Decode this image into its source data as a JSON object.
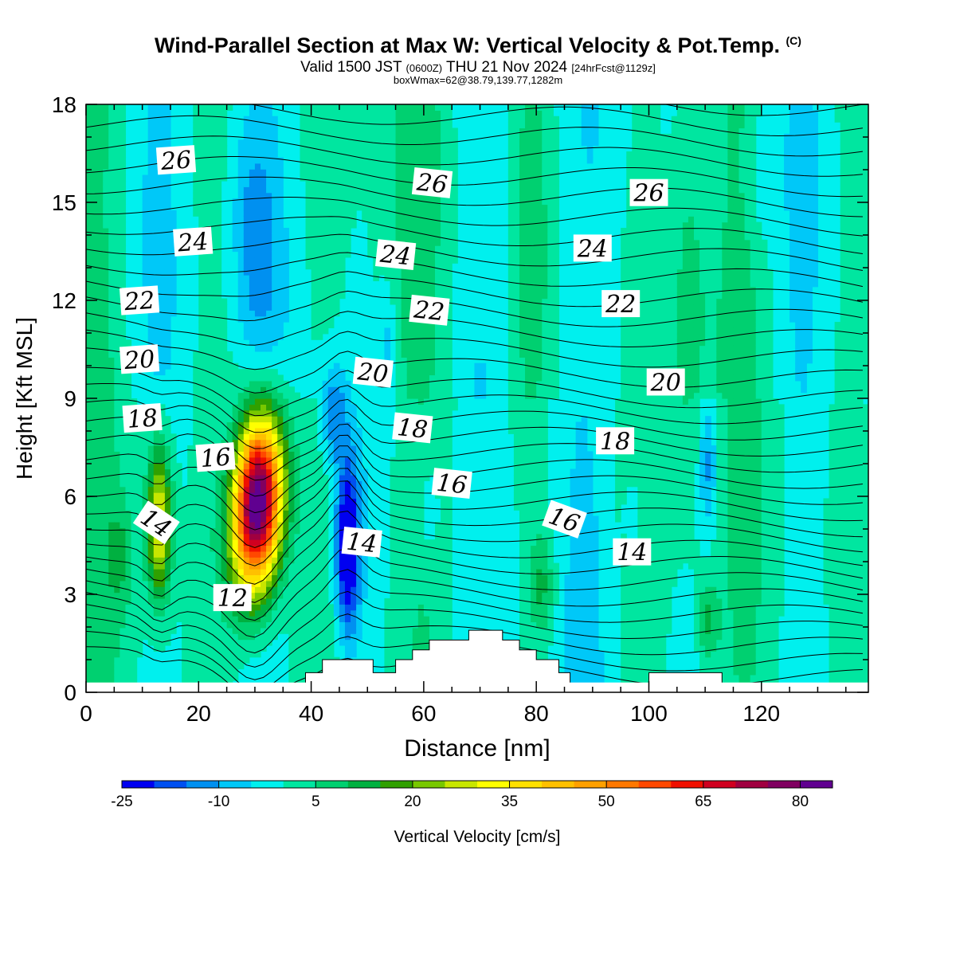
{
  "header": {
    "title_main": "Wind-Parallel Section at Max W: Vertical Velocity & Pot.Temp.",
    "title_copyright": "(C)",
    "valid_prefix": "Valid 1500 JST",
    "valid_utc": "(0600Z)",
    "valid_date": "THU 21 Nov 2024",
    "forecast_info": "[24hrFcst@1129z]",
    "box_info": "boxWmax=62@38.79,139.77,1282m"
  },
  "chart_data": {
    "type": "heatmap",
    "xlabel": "Distance [nm]",
    "ylabel": "Height [Kft MSL]",
    "xlim": [
      0,
      139
    ],
    "ylim": [
      0,
      18
    ],
    "x_ticks": [
      0,
      20,
      40,
      60,
      80,
      100,
      120
    ],
    "y_ticks": [
      0,
      3,
      6,
      9,
      12,
      15,
      18
    ],
    "colorbar": {
      "label": "Vertical Velocity [cm/s]",
      "ticks": [
        -25,
        -10,
        5,
        20,
        35,
        50,
        65,
        80
      ],
      "min": -25,
      "step": 5,
      "colors": [
        "#0000f0",
        "#0050f0",
        "#0090f0",
        "#00c8f8",
        "#00f0ee",
        "#00e6a0",
        "#00d070",
        "#00b040",
        "#30a000",
        "#78c800",
        "#c8e600",
        "#ffff00",
        "#ffe000",
        "#ffc000",
        "#ffa000",
        "#ff7800",
        "#ff4800",
        "#f01000",
        "#d00020",
        "#a00040",
        "#800060",
        "#600090"
      ]
    },
    "updrafts": [
      {
        "x": 30.5,
        "y": 5.8,
        "peak": 85
      },
      {
        "x": 13,
        "y": 5.2,
        "peak": 38
      },
      {
        "x": 81,
        "y": 3.3,
        "peak": 18
      },
      {
        "x": 110.5,
        "y": 2.2,
        "peak": 15
      }
    ],
    "downdrafts": [
      {
        "x": 46.5,
        "y": 4.5,
        "min": -25
      },
      {
        "x": 44,
        "y": 8.5,
        "min": -15
      },
      {
        "x": 110.5,
        "y": 7.0,
        "min": -12
      },
      {
        "x": 30,
        "y": 14.0,
        "min": -10
      }
    ],
    "terrain": [
      [
        0,
        0
      ],
      [
        39,
        0
      ],
      [
        39,
        0.6
      ],
      [
        42,
        0.6
      ],
      [
        42,
        1.0
      ],
      [
        51,
        1.0
      ],
      [
        51,
        0.6
      ],
      [
        55,
        0.6
      ],
      [
        55,
        1.0
      ],
      [
        58,
        1.0
      ],
      [
        58,
        1.3
      ],
      [
        61,
        1.3
      ],
      [
        61,
        1.6
      ],
      [
        68,
        1.6
      ],
      [
        68,
        1.9
      ],
      [
        74,
        1.9
      ],
      [
        74,
        1.6
      ],
      [
        77,
        1.6
      ],
      [
        77,
        1.3
      ],
      [
        80,
        1.3
      ],
      [
        80,
        1.0
      ],
      [
        84,
        1.0
      ],
      [
        84,
        0.6
      ],
      [
        86,
        0.6
      ],
      [
        86,
        0
      ],
      [
        100,
        0
      ],
      [
        100,
        0.6
      ],
      [
        113,
        0.6
      ],
      [
        113,
        0
      ],
      [
        139,
        0
      ]
    ],
    "isentropes": [
      {
        "theta": 12,
        "label_x": 26,
        "label_y": 2.9
      },
      {
        "theta": 14,
        "label_x": 12.5,
        "label_y": 5.2
      },
      {
        "theta": 14,
        "label_x": 49,
        "label_y": 4.6
      },
      {
        "theta": 14,
        "label_x": 97,
        "label_y": 4.3
      },
      {
        "theta": 16,
        "label_x": 23,
        "label_y": 7.2
      },
      {
        "theta": 16,
        "label_x": 65,
        "label_y": 6.4
      },
      {
        "theta": 16,
        "label_x": 85,
        "label_y": 5.3
      },
      {
        "theta": 18,
        "label_x": 10,
        "label_y": 8.4
      },
      {
        "theta": 18,
        "label_x": 58,
        "label_y": 8.1
      },
      {
        "theta": 18,
        "label_x": 94,
        "label_y": 7.7
      },
      {
        "theta": 20,
        "label_x": 9.5,
        "label_y": 10.2
      },
      {
        "theta": 20,
        "label_x": 51,
        "label_y": 9.8
      },
      {
        "theta": 20,
        "label_x": 103,
        "label_y": 9.5
      },
      {
        "theta": 22,
        "label_x": 9.5,
        "label_y": 12.0
      },
      {
        "theta": 22,
        "label_x": 61,
        "label_y": 11.7
      },
      {
        "theta": 22,
        "label_x": 95,
        "label_y": 11.9
      },
      {
        "theta": 24,
        "label_x": 19,
        "label_y": 13.8
      },
      {
        "theta": 24,
        "label_x": 55,
        "label_y": 13.4
      },
      {
        "theta": 24,
        "label_x": 90,
        "label_y": 13.6
      },
      {
        "theta": 26,
        "label_x": 16,
        "label_y": 16.3
      },
      {
        "theta": 26,
        "label_x": 61.5,
        "label_y": 15.6
      },
      {
        "theta": 26,
        "label_x": 100,
        "label_y": 15.3
      }
    ]
  }
}
